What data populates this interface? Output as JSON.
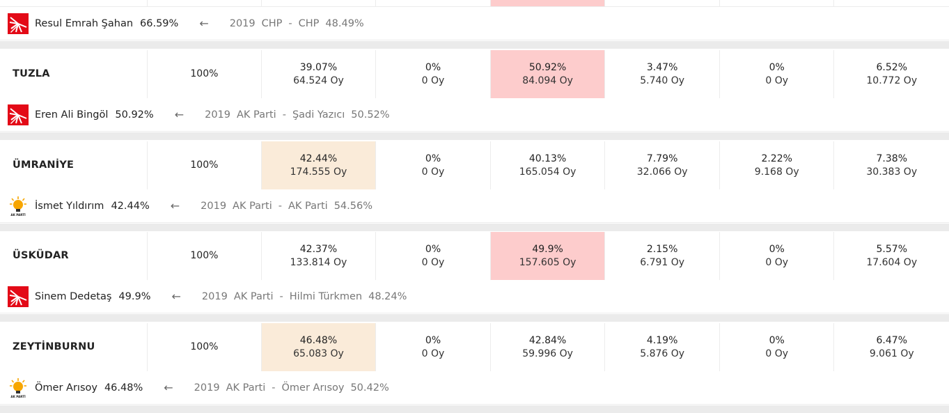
{
  "rows": [
    {
      "district": "",
      "turnout": "",
      "cells": [
        {
          "pct": "",
          "votes": "",
          "win": ""
        },
        {
          "pct": "",
          "votes": "",
          "win": ""
        },
        {
          "pct": "",
          "votes": "",
          "win": "red"
        },
        {
          "pct": "",
          "votes": "",
          "win": ""
        },
        {
          "pct": "",
          "votes": "",
          "win": ""
        },
        {
          "pct": "",
          "votes": "",
          "win": ""
        }
      ],
      "winner": {
        "party_logo": "chp-logo-icon",
        "name": "Resul Emrah Şahan",
        "pct": "66.59%",
        "arrow": "←",
        "prev_year": "2019",
        "prev_party": "CHP",
        "sep": "-",
        "prev_name": "CHP",
        "prev_pct": "48.49%"
      }
    },
    {
      "district": "TUZLA",
      "turnout": "100%",
      "cells": [
        {
          "pct": "39.07%",
          "votes": "64.524 Oy",
          "win": ""
        },
        {
          "pct": "0%",
          "votes": "0 Oy",
          "win": ""
        },
        {
          "pct": "50.92%",
          "votes": "84.094 Oy",
          "win": "red"
        },
        {
          "pct": "3.47%",
          "votes": "5.740 Oy",
          "win": ""
        },
        {
          "pct": "0%",
          "votes": "0 Oy",
          "win": ""
        },
        {
          "pct": "6.52%",
          "votes": "10.772 Oy",
          "win": ""
        }
      ],
      "winner": {
        "party_logo": "chp-logo-icon",
        "name": "Eren Ali Bingöl",
        "pct": "50.92%",
        "arrow": "←",
        "prev_year": "2019",
        "prev_party": "AK Parti",
        "sep": "-",
        "prev_name": "Şadi Yazıcı",
        "prev_pct": "50.52%"
      }
    },
    {
      "district": "ÜMRANİYE",
      "turnout": "100%",
      "cells": [
        {
          "pct": "42.44%",
          "votes": "174.555 Oy",
          "win": "orange"
        },
        {
          "pct": "0%",
          "votes": "0 Oy",
          "win": ""
        },
        {
          "pct": "40.13%",
          "votes": "165.054 Oy",
          "win": ""
        },
        {
          "pct": "7.79%",
          "votes": "32.066 Oy",
          "win": ""
        },
        {
          "pct": "2.22%",
          "votes": "9.168 Oy",
          "win": ""
        },
        {
          "pct": "7.38%",
          "votes": "30.383 Oy",
          "win": ""
        }
      ],
      "winner": {
        "party_logo": "ak-parti-logo-icon",
        "name": "İsmet Yıldırım",
        "pct": "42.44%",
        "arrow": "←",
        "prev_year": "2019",
        "prev_party": "AK Parti",
        "sep": "-",
        "prev_name": "AK Parti",
        "prev_pct": "54.56%"
      }
    },
    {
      "district": "ÜSKÜDAR",
      "turnout": "100%",
      "cells": [
        {
          "pct": "42.37%",
          "votes": "133.814 Oy",
          "win": ""
        },
        {
          "pct": "0%",
          "votes": "0 Oy",
          "win": ""
        },
        {
          "pct": "49.9%",
          "votes": "157.605 Oy",
          "win": "red"
        },
        {
          "pct": "2.15%",
          "votes": "6.791 Oy",
          "win": ""
        },
        {
          "pct": "0%",
          "votes": "0 Oy",
          "win": ""
        },
        {
          "pct": "5.57%",
          "votes": "17.604 Oy",
          "win": ""
        }
      ],
      "winner": {
        "party_logo": "chp-logo-icon",
        "name": "Sinem Dedetaş",
        "pct": "49.9%",
        "arrow": "←",
        "prev_year": "2019",
        "prev_party": "AK Parti",
        "sep": "-",
        "prev_name": "Hilmi Türkmen",
        "prev_pct": "48.24%"
      }
    },
    {
      "district": "ZEYTİNBURNU",
      "turnout": "100%",
      "cells": [
        {
          "pct": "46.48%",
          "votes": "65.083 Oy",
          "win": "orange"
        },
        {
          "pct": "0%",
          "votes": "0 Oy",
          "win": ""
        },
        {
          "pct": "42.84%",
          "votes": "59.996 Oy",
          "win": ""
        },
        {
          "pct": "4.19%",
          "votes": "5.876 Oy",
          "win": ""
        },
        {
          "pct": "0%",
          "votes": "0 Oy",
          "win": ""
        },
        {
          "pct": "6.47%",
          "votes": "9.061 Oy",
          "win": ""
        }
      ],
      "winner": {
        "party_logo": "ak-parti-logo-icon",
        "name": "Ömer Arısoy",
        "pct": "46.48%",
        "arrow": "←",
        "prev_year": "2019",
        "prev_party": "AK Parti",
        "sep": "-",
        "prev_name": "Ömer Arısoy",
        "prev_pct": "50.42%"
      }
    }
  ],
  "colors": {
    "win_red_bg": "#fdcccc",
    "win_orange_bg": "#faebd9",
    "chp_red": "#e30a17",
    "akp_yellow": "#f7a600",
    "row_gap": "#ebebeb"
  },
  "logo_text": {
    "ak_parti": "AK PARTİ"
  }
}
